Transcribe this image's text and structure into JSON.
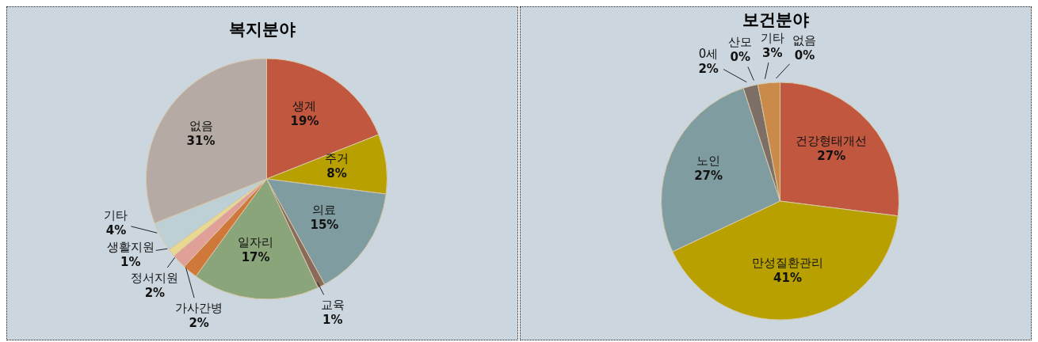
{
  "chart_data": [
    {
      "type": "pie",
      "title": "복지분야",
      "categories": [
        "생계",
        "주거",
        "의료",
        "교육",
        "일자리",
        "가사간병",
        "정서지원",
        "생활지원",
        "기타",
        "없음"
      ],
      "values": [
        19,
        8,
        15,
        1,
        17,
        2,
        2,
        1,
        4,
        31
      ],
      "colors": [
        "#c0573e",
        "#b8a000",
        "#7f9da1",
        "#8a6a5a",
        "#8aa57a",
        "#d0783a",
        "#e0a098",
        "#e8d890",
        "#bcd0d6",
        "#b5aaa4"
      ],
      "value_labels": [
        "19%",
        "8%",
        "15%",
        "1%",
        "17%",
        "2%",
        "2%",
        "1%",
        "4%",
        "31%"
      ]
    },
    {
      "type": "pie",
      "title": "보건분야",
      "categories": [
        "건강형태개선",
        "만성질환관리",
        "노인",
        "0세",
        "산모",
        "기타",
        "없음"
      ],
      "values": [
        27,
        41,
        27,
        2,
        0,
        3,
        0
      ],
      "colors": [
        "#c0573e",
        "#b8a000",
        "#7f9da1",
        "#7d6e66",
        "#a0a070",
        "#c98a4a",
        "#e8b090"
      ],
      "value_labels": [
        "27%",
        "41%",
        "27%",
        "2%",
        "0%",
        "3%",
        "0%"
      ]
    }
  ]
}
